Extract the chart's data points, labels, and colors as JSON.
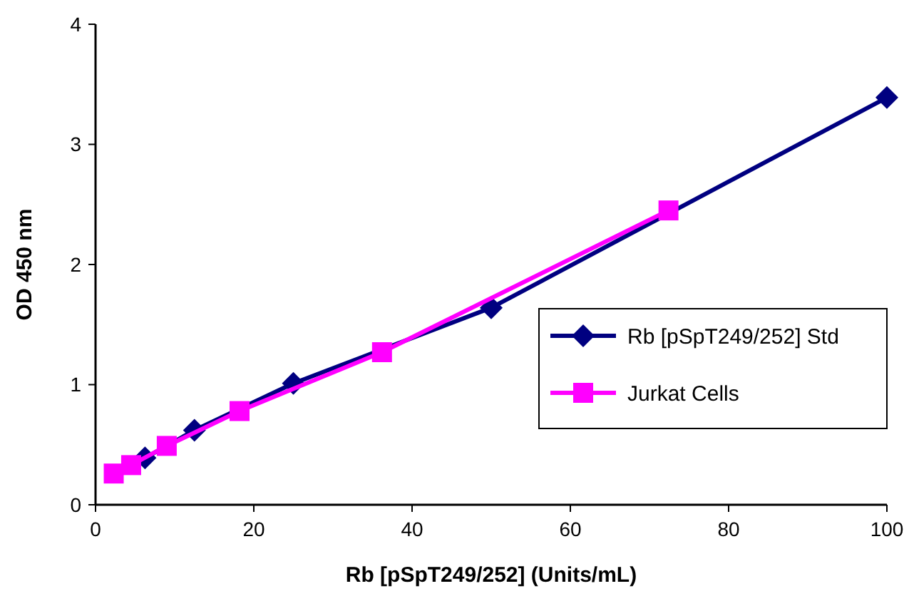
{
  "chart_data": {
    "type": "line",
    "xlabel": "Rb [pSpT249/252] (Units/mL)",
    "ylabel": "OD 450 nm",
    "xlim": [
      0,
      100
    ],
    "xticks": [
      0,
      20,
      40,
      60,
      80,
      100
    ],
    "ylim": [
      0,
      4
    ],
    "yticks": [
      0,
      1,
      2,
      3,
      4
    ],
    "legend": "right",
    "grid": false,
    "series": [
      {
        "name": "Rb [pSpT249/252] Std",
        "color": "#000080",
        "marker": "diamond",
        "x": [
          6.25,
          12.5,
          25,
          50,
          100
        ],
        "values": [
          0.39,
          0.62,
          1.01,
          1.64,
          3.39
        ]
      },
      {
        "name": "Jurkat Cells",
        "color": "#ff00ff",
        "marker": "square",
        "x": [
          2.3,
          4.5,
          9,
          18.2,
          36.2,
          72.4
        ],
        "values": [
          0.26,
          0.33,
          0.49,
          0.78,
          1.27,
          2.45
        ]
      }
    ]
  }
}
